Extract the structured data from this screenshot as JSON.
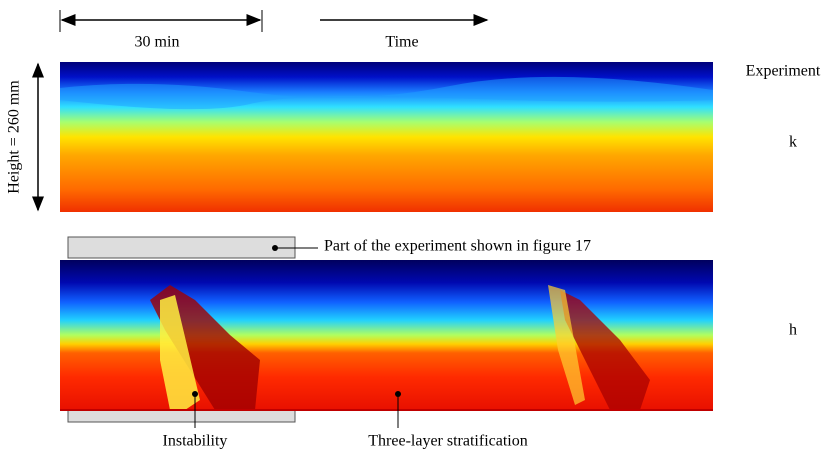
{
  "figure": {
    "scale_label": "30 min",
    "time_label": "Time",
    "height_label": "Height = 260 mm",
    "panel_labels": [
      "Experiment",
      "k",
      "h"
    ],
    "annotations": {
      "part": "Part of the experiment shown in figure 17",
      "instability": "Instability",
      "stratification": "Three-layer stratification"
    }
  }
}
